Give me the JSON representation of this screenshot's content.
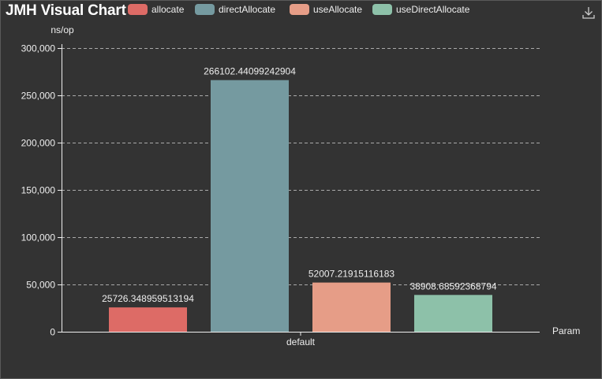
{
  "title": "JMH Visual Chart",
  "legend": [
    {
      "name": "allocate",
      "color": "#dd6b66"
    },
    {
      "name": "directAllocate",
      "color": "#759aa0"
    },
    {
      "name": "useAllocate",
      "color": "#e69d87"
    },
    {
      "name": "useDirectAllocate",
      "color": "#8dc1a9"
    }
  ],
  "toolbox": {
    "download_icon": "download-icon"
  },
  "chart_data": {
    "type": "bar",
    "categories": [
      "default"
    ],
    "series": [
      {
        "name": "allocate",
        "values": [
          25726.348959513194
        ],
        "label": "25726.348959513194",
        "color": "#dd6b66"
      },
      {
        "name": "directAllocate",
        "values": [
          266102.44099242904
        ],
        "label": "266102.44099242904",
        "color": "#759aa0"
      },
      {
        "name": "useAllocate",
        "values": [
          52007.21915116183
        ],
        "label": "52007.21915116183",
        "color": "#e69d87"
      },
      {
        "name": "useDirectAllocate",
        "values": [
          38908.68592368794
        ],
        "label": "38908.68592368794",
        "color": "#8dc1a9"
      }
    ],
    "title": "JMH Visual Chart",
    "xlabel": "Param",
    "ylabel": "ns/op",
    "ylim": [
      0,
      300000
    ],
    "yticks": [
      0,
      50000,
      100000,
      150000,
      200000,
      250000,
      300000
    ],
    "ytick_labels": [
      "0",
      "50,000",
      "100,000",
      "150,000",
      "200,000",
      "250,000",
      "300,000"
    ],
    "grid": true,
    "legend_position": "top"
  }
}
